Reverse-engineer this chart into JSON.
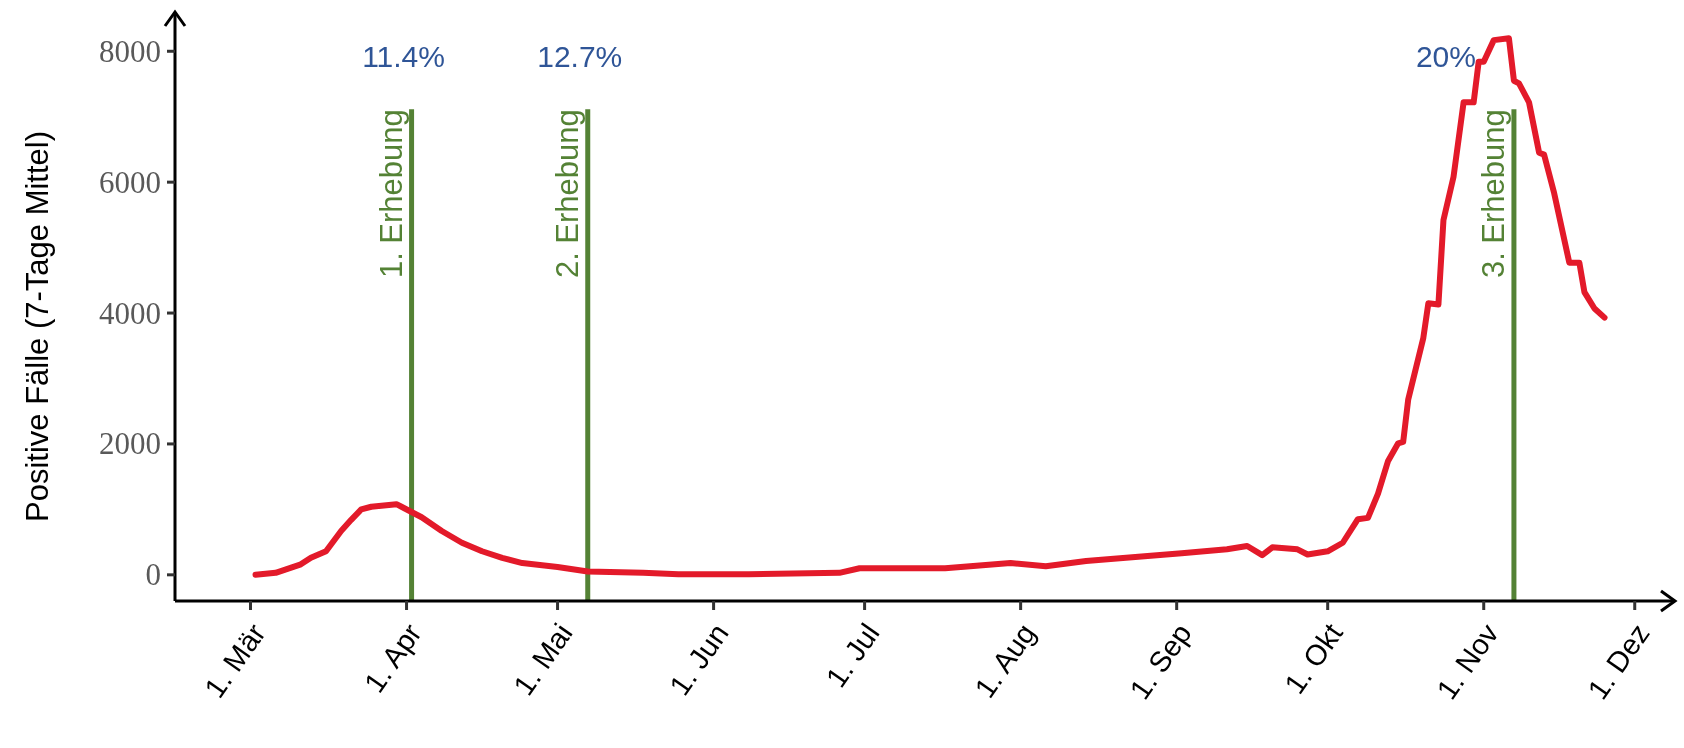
{
  "chart_data": {
    "type": "line",
    "ylabel": "Positive Fälle (7-Tage Mittel)",
    "x": [
      "--03-02",
      "--03-06",
      "--03-11",
      "--03-13",
      "--03-16",
      "--03-19",
      "--03-21",
      "--03-23",
      "--03-25",
      "--03-30",
      "--03-31",
      "--04-04",
      "--04-08",
      "--04-12",
      "--04-16",
      "--04-20",
      "--04-24",
      "--05-01",
      "--05-07",
      "--05-18",
      "--05-25",
      "--06-08",
      "--06-26",
      "--06-30",
      "--07-17",
      "--07-30",
      "--08-06",
      "--08-14",
      "--08-25",
      "--09-02",
      "--09-11",
      "--09-15",
      "--09-18",
      "--09-20",
      "--09-25",
      "--09-27",
      "--10-01",
      "--10-04",
      "--10-07",
      "--10-09",
      "--10-11",
      "--10-13",
      "--10-15",
      "--10-16",
      "--10-17",
      "--10-20",
      "--10-21",
      "--10-23",
      "--10-24",
      "--10-26",
      "--10-28",
      "--10-30",
      "--10-31",
      "--11-01",
      "--11-03",
      "--11-06",
      "--11-07",
      "--11-08",
      "--11-10",
      "--11-12",
      "--11-13",
      "--11-15",
      "--11-18",
      "--11-20",
      "--11-21",
      "--11-23",
      "--11-25"
    ],
    "series": [
      {
        "color": "#e31a2a",
        "values": [
          0,
          30,
          160,
          260,
          360,
          670,
          840,
          1000,
          1040,
          1080,
          1040,
          880,
          670,
          490,
          360,
          260,
          180,
          120,
          50,
          30,
          10,
          10,
          30,
          100,
          100,
          180,
          130,
          210,
          280,
          330,
          390,
          440,
          300,
          420,
          390,
          310,
          360,
          490,
          850,
          870,
          1240,
          1740,
          2010,
          2030,
          2680,
          3620,
          4150,
          4130,
          5420,
          6080,
          7220,
          7220,
          7840,
          7840,
          8170,
          8200,
          7550,
          7510,
          7220,
          6450,
          6420,
          5830,
          4770,
          4770,
          4320,
          4070,
          3930
        ]
      }
    ],
    "xlim": [
      "--02-15",
      "--12-09"
    ],
    "xticks": [
      {
        "value": "--03-01",
        "label": "1. Mär"
      },
      {
        "value": "--04-01",
        "label": "1. Apr"
      },
      {
        "value": "--05-01",
        "label": "1. Mai"
      },
      {
        "value": "--06-01",
        "label": "1. Jun"
      },
      {
        "value": "--07-01",
        "label": "1. Jul"
      },
      {
        "value": "--08-01",
        "label": "1. Aug"
      },
      {
        "value": "--09-01",
        "label": "1. Sep"
      },
      {
        "value": "--10-01",
        "label": "1. Okt"
      },
      {
        "value": "--11-01",
        "label": "1. Nov"
      },
      {
        "value": "--12-01",
        "label": "1. Dez"
      }
    ],
    "ylim": [
      -400,
      8600
    ],
    "yticks": [
      0,
      2000,
      4000,
      6000,
      8000
    ],
    "grid": false,
    "marker": "none",
    "line_style": "solid",
    "ref_lines": [
      {
        "axis": "x",
        "value": "--04-02",
        "label": "1. Erhebung",
        "color": "#548235"
      },
      {
        "axis": "x",
        "value": "--05-07",
        "label": "2. Erhebung",
        "color": "#548235"
      },
      {
        "axis": "x",
        "value": "--11-07",
        "label": "3. Erhebung",
        "color": "#548235"
      }
    ],
    "annotations": [
      "11.4%",
      "12.7%",
      "20%"
    ]
  }
}
